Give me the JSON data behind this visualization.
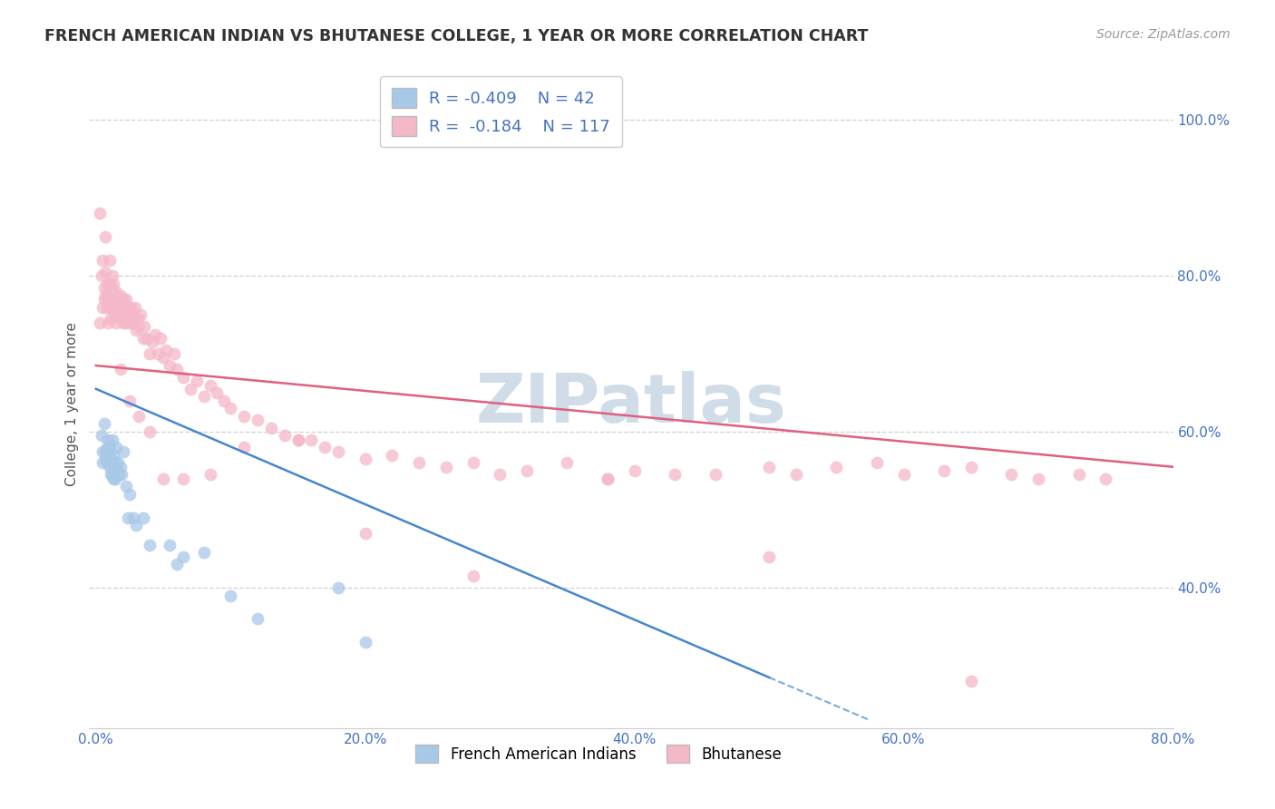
{
  "title": "FRENCH AMERICAN INDIAN VS BHUTANESE COLLEGE, 1 YEAR OR MORE CORRELATION CHART",
  "source": "Source: ZipAtlas.com",
  "xlabel_ticks": [
    "0.0%",
    "",
    "",
    "",
    "",
    "20.0%",
    "",
    "",
    "",
    "",
    "40.0%",
    "",
    "",
    "",
    "",
    "60.0%",
    "",
    "",
    "",
    "",
    "80.0%"
  ],
  "xlabel_vals": [
    0.0,
    0.04,
    0.08,
    0.12,
    0.16,
    0.2,
    0.24,
    0.28,
    0.32,
    0.36,
    0.4,
    0.44,
    0.48,
    0.52,
    0.56,
    0.6,
    0.64,
    0.68,
    0.72,
    0.76,
    0.8
  ],
  "xlabel_show": [
    "0.0%",
    "20.0%",
    "40.0%",
    "60.0%",
    "80.0%"
  ],
  "xlabel_show_vals": [
    0.0,
    0.2,
    0.4,
    0.6,
    0.8
  ],
  "ylabel": "College, 1 year or more",
  "ylabel_ticks": [
    "40.0%",
    "60.0%",
    "80.0%",
    "100.0%"
  ],
  "ylabel_vals": [
    0.4,
    0.6,
    0.8,
    1.0
  ],
  "xlim": [
    -0.005,
    0.8
  ],
  "ylim": [
    0.22,
    1.05
  ],
  "blue_R": -0.409,
  "blue_N": 42,
  "pink_R": -0.184,
  "pink_N": 117,
  "blue_color": "#a8c8e8",
  "pink_color": "#f4b8c8",
  "blue_line_color": "#4488cc",
  "pink_line_color": "#e06080",
  "watermark_color": "#d0dce8",
  "background_color": "#ffffff",
  "grid_color": "#d0d0d0",
  "blue_line_x0": 0.0,
  "blue_line_y0": 0.655,
  "blue_line_x1": 0.5,
  "blue_line_y1": 0.285,
  "blue_line_dash_x0": 0.5,
  "blue_line_dash_y0": 0.285,
  "blue_line_dash_x1": 0.575,
  "blue_line_dash_y1": 0.23,
  "pink_line_x0": 0.0,
  "pink_line_y0": 0.685,
  "pink_line_x1": 0.8,
  "pink_line_y1": 0.555,
  "blue_scatter_x": [
    0.004,
    0.005,
    0.005,
    0.006,
    0.007,
    0.007,
    0.008,
    0.008,
    0.009,
    0.009,
    0.01,
    0.01,
    0.011,
    0.011,
    0.012,
    0.012,
    0.013,
    0.013,
    0.014,
    0.014,
    0.015,
    0.015,
    0.016,
    0.017,
    0.018,
    0.019,
    0.02,
    0.022,
    0.024,
    0.025,
    0.028,
    0.03,
    0.035,
    0.04,
    0.055,
    0.06,
    0.065,
    0.08,
    0.1,
    0.12,
    0.18,
    0.2
  ],
  "blue_scatter_y": [
    0.595,
    0.575,
    0.56,
    0.61,
    0.575,
    0.565,
    0.58,
    0.56,
    0.575,
    0.59,
    0.555,
    0.58,
    0.545,
    0.565,
    0.545,
    0.59,
    0.54,
    0.57,
    0.54,
    0.56,
    0.555,
    0.58,
    0.56,
    0.545,
    0.555,
    0.545,
    0.575,
    0.53,
    0.49,
    0.52,
    0.49,
    0.48,
    0.49,
    0.455,
    0.455,
    0.43,
    0.44,
    0.445,
    0.39,
    0.36,
    0.4,
    0.33
  ],
  "pink_scatter_x": [
    0.003,
    0.004,
    0.005,
    0.005,
    0.006,
    0.006,
    0.007,
    0.007,
    0.008,
    0.008,
    0.009,
    0.009,
    0.01,
    0.01,
    0.01,
    0.011,
    0.011,
    0.012,
    0.012,
    0.013,
    0.013,
    0.014,
    0.014,
    0.015,
    0.015,
    0.016,
    0.016,
    0.017,
    0.018,
    0.018,
    0.019,
    0.02,
    0.02,
    0.021,
    0.022,
    0.022,
    0.023,
    0.024,
    0.025,
    0.025,
    0.026,
    0.027,
    0.028,
    0.029,
    0.03,
    0.031,
    0.032,
    0.033,
    0.035,
    0.036,
    0.038,
    0.04,
    0.042,
    0.044,
    0.046,
    0.048,
    0.05,
    0.052,
    0.055,
    0.058,
    0.06,
    0.065,
    0.07,
    0.075,
    0.08,
    0.085,
    0.09,
    0.095,
    0.1,
    0.11,
    0.12,
    0.13,
    0.14,
    0.15,
    0.16,
    0.17,
    0.18,
    0.2,
    0.22,
    0.24,
    0.26,
    0.28,
    0.3,
    0.32,
    0.35,
    0.38,
    0.4,
    0.43,
    0.46,
    0.5,
    0.52,
    0.55,
    0.58,
    0.6,
    0.63,
    0.65,
    0.68,
    0.7,
    0.73,
    0.75,
    0.003,
    0.007,
    0.012,
    0.018,
    0.025,
    0.032,
    0.04,
    0.05,
    0.065,
    0.085,
    0.11,
    0.15,
    0.2,
    0.28,
    0.38,
    0.5,
    0.65
  ],
  "pink_scatter_y": [
    0.74,
    0.8,
    0.82,
    0.76,
    0.785,
    0.77,
    0.805,
    0.775,
    0.76,
    0.79,
    0.74,
    0.775,
    0.79,
    0.76,
    0.82,
    0.77,
    0.745,
    0.8,
    0.76,
    0.79,
    0.77,
    0.75,
    0.78,
    0.76,
    0.74,
    0.77,
    0.755,
    0.765,
    0.745,
    0.775,
    0.76,
    0.74,
    0.77,
    0.755,
    0.74,
    0.77,
    0.75,
    0.76,
    0.74,
    0.755,
    0.76,
    0.74,
    0.75,
    0.76,
    0.73,
    0.745,
    0.735,
    0.75,
    0.72,
    0.735,
    0.72,
    0.7,
    0.715,
    0.725,
    0.7,
    0.72,
    0.695,
    0.705,
    0.685,
    0.7,
    0.68,
    0.67,
    0.655,
    0.665,
    0.645,
    0.66,
    0.65,
    0.64,
    0.63,
    0.62,
    0.615,
    0.605,
    0.595,
    0.59,
    0.59,
    0.58,
    0.575,
    0.565,
    0.57,
    0.56,
    0.555,
    0.56,
    0.545,
    0.55,
    0.56,
    0.54,
    0.55,
    0.545,
    0.545,
    0.555,
    0.545,
    0.555,
    0.56,
    0.545,
    0.55,
    0.555,
    0.545,
    0.54,
    0.545,
    0.54,
    0.88,
    0.85,
    0.78,
    0.68,
    0.64,
    0.62,
    0.6,
    0.54,
    0.54,
    0.545,
    0.58,
    0.59,
    0.47,
    0.415,
    0.54,
    0.44,
    0.28
  ]
}
